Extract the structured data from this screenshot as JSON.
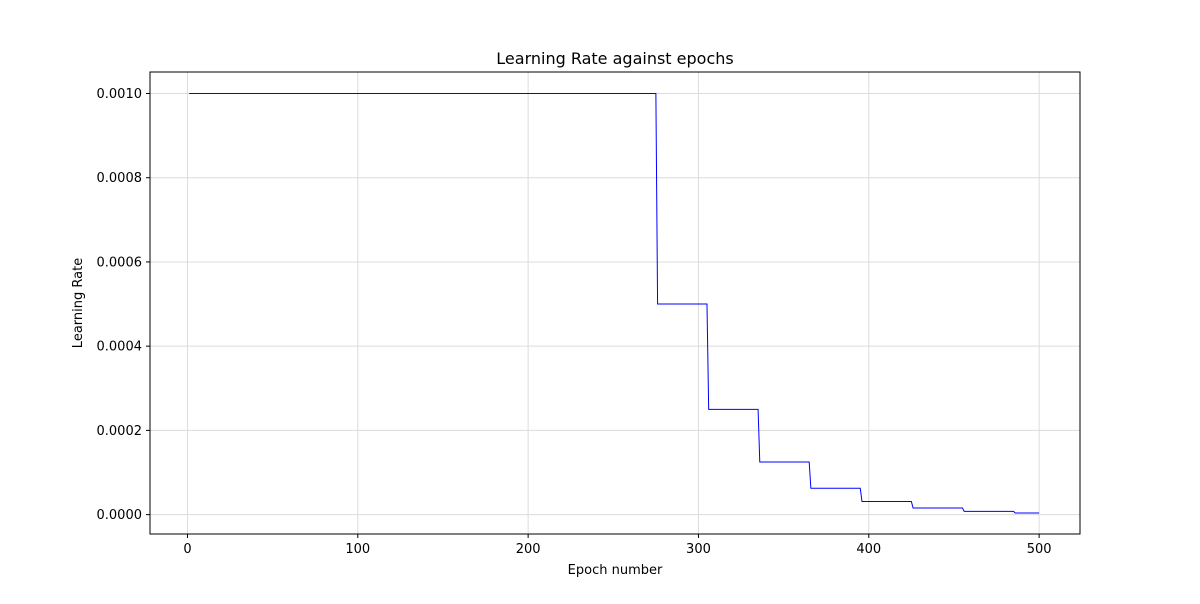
{
  "chart_data": {
    "type": "line",
    "title": "Learning Rate against epochs",
    "xlabel": "Epoch number",
    "ylabel": "Learning Rate",
    "xlim": [
      -22,
      524
    ],
    "ylim": [
      -4.6e-05,
      0.001051
    ],
    "xticks": [
      0,
      100,
      200,
      300,
      400,
      500
    ],
    "xtick_labels": [
      "0",
      "100",
      "200",
      "300",
      "400",
      "500"
    ],
    "yticks": [
      0.0,
      0.0002,
      0.0004,
      0.0006,
      0.0008,
      0.001
    ],
    "ytick_labels": [
      "0.0000",
      "0.0002",
      "0.0004",
      "0.0006",
      "0.0008",
      "0.0010"
    ],
    "grid": true,
    "colors": {
      "line": "#0000ff",
      "grid": "#dcdcdc",
      "axes": "#000000"
    },
    "series": [
      {
        "x": [
          1,
          275,
          276,
          305,
          306,
          335,
          336,
          365,
          366,
          395,
          396,
          425,
          426,
          455,
          456,
          485,
          486,
          500
        ],
        "values": [
          0.001,
          0.001,
          0.0005,
          0.0005,
          0.00025,
          0.00025,
          0.000125,
          0.000125,
          6.25e-05,
          6.25e-05,
          3.125e-05,
          3.125e-05,
          1.5625e-05,
          1.5625e-05,
          7.8125e-06,
          7.8125e-06,
          3.90625e-06,
          3.90625e-06
        ]
      }
    ]
  }
}
